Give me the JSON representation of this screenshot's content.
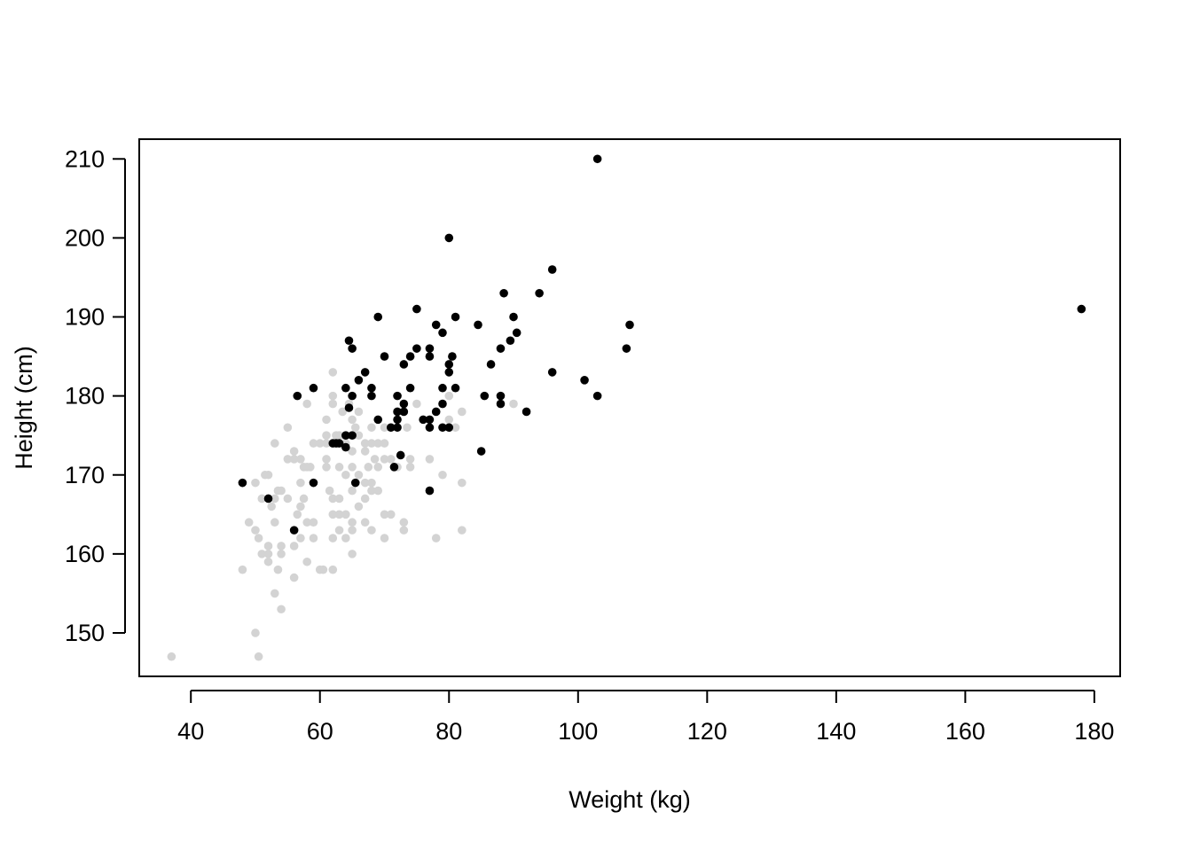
{
  "chart_data": {
    "type": "scatter",
    "title": "",
    "xlabel": "Weight (kg)",
    "ylabel": "Height (cm)",
    "xlim": [
      32,
      184
    ],
    "ylim": [
      144.5,
      212.5
    ],
    "xticks": [
      40,
      60,
      80,
      100,
      120,
      140,
      160,
      180
    ],
    "yticks": [
      150,
      160,
      170,
      180,
      190,
      200,
      210
    ],
    "grid": false,
    "legend": "none",
    "series": [
      {
        "color": "#d3d3d3",
        "points": [
          [
            37,
            147
          ],
          [
            48,
            158
          ],
          [
            49,
            164
          ],
          [
            50,
            169
          ],
          [
            50,
            163
          ],
          [
            50.5,
            162
          ],
          [
            50,
            150
          ],
          [
            50.5,
            147
          ],
          [
            51,
            167
          ],
          [
            51,
            160
          ],
          [
            51.5,
            170
          ],
          [
            52,
            170
          ],
          [
            52,
            161
          ],
          [
            52,
            160
          ],
          [
            52,
            159
          ],
          [
            52.5,
            166
          ],
          [
            53,
            164
          ],
          [
            53,
            155
          ],
          [
            53,
            167
          ],
          [
            53,
            174
          ],
          [
            53.5,
            168
          ],
          [
            53.5,
            158
          ],
          [
            54,
            161
          ],
          [
            54,
            160
          ],
          [
            54,
            153
          ],
          [
            54,
            168
          ],
          [
            55,
            167
          ],
          [
            55,
            172
          ],
          [
            55,
            176
          ],
          [
            56,
            173
          ],
          [
            56,
            172
          ],
          [
            56,
            161
          ],
          [
            56,
            157
          ],
          [
            56.5,
            165
          ],
          [
            57,
            162
          ],
          [
            57,
            166
          ],
          [
            57,
            169
          ],
          [
            57,
            172
          ],
          [
            57.5,
            171
          ],
          [
            57.5,
            167
          ],
          [
            58,
            179
          ],
          [
            58,
            171
          ],
          [
            58,
            159
          ],
          [
            58,
            164
          ],
          [
            58.5,
            171
          ],
          [
            59,
            174
          ],
          [
            59,
            162
          ],
          [
            59,
            164
          ],
          [
            60,
            174
          ],
          [
            60,
            158
          ],
          [
            60.5,
            158
          ],
          [
            61,
            177
          ],
          [
            61,
            174
          ],
          [
            61,
            171
          ],
          [
            61,
            172
          ],
          [
            61,
            175
          ],
          [
            61.5,
            168
          ],
          [
            62,
            183
          ],
          [
            62,
            179
          ],
          [
            62,
            180
          ],
          [
            62,
            174
          ],
          [
            62,
            167
          ],
          [
            62,
            165
          ],
          [
            62,
            162
          ],
          [
            62,
            158
          ],
          [
            62.5,
            175
          ],
          [
            63,
            175
          ],
          [
            63,
            167
          ],
          [
            63,
            165
          ],
          [
            63,
            163
          ],
          [
            63,
            171
          ],
          [
            63.5,
            178
          ],
          [
            64,
            174
          ],
          [
            64,
            170
          ],
          [
            64,
            165
          ],
          [
            64,
            162
          ],
          [
            64.5,
            179
          ],
          [
            65,
            177
          ],
          [
            65,
            173
          ],
          [
            65,
            171
          ],
          [
            65,
            168
          ],
          [
            65,
            164
          ],
          [
            65,
            163
          ],
          [
            65,
            160
          ],
          [
            65.5,
            176
          ],
          [
            66,
            178
          ],
          [
            66,
            175
          ],
          [
            66,
            170
          ],
          [
            66,
            166
          ],
          [
            67,
            174
          ],
          [
            67,
            173
          ],
          [
            67,
            169
          ],
          [
            67,
            164
          ],
          [
            67,
            167
          ],
          [
            67.5,
            171
          ],
          [
            68,
            176
          ],
          [
            68,
            174
          ],
          [
            68,
            169
          ],
          [
            68,
            168
          ],
          [
            68,
            163
          ],
          [
            68.5,
            172
          ],
          [
            69,
            174
          ],
          [
            69,
            171
          ],
          [
            69,
            168
          ],
          [
            70,
            176
          ],
          [
            70,
            174
          ],
          [
            70,
            172
          ],
          [
            70,
            165
          ],
          [
            70,
            162
          ],
          [
            71,
            165
          ],
          [
            71,
            176
          ],
          [
            71,
            172
          ],
          [
            72,
            171
          ],
          [
            73,
            164
          ],
          [
            73,
            163
          ],
          [
            73.5,
            176
          ],
          [
            74,
            172
          ],
          [
            74,
            171
          ],
          [
            75,
            179
          ],
          [
            76,
            177
          ],
          [
            77,
            172
          ],
          [
            77,
            168
          ],
          [
            78,
            162
          ],
          [
            79,
            170
          ],
          [
            80,
            180
          ],
          [
            80,
            177
          ],
          [
            81,
            176
          ],
          [
            82,
            178
          ],
          [
            82,
            169
          ],
          [
            82,
            163
          ],
          [
            90,
            179
          ]
        ]
      },
      {
        "color": "#000000",
        "points": [
          [
            48,
            169
          ],
          [
            52,
            167
          ],
          [
            56,
            163
          ],
          [
            56.5,
            180
          ],
          [
            59,
            181
          ],
          [
            59,
            169
          ],
          [
            62,
            174
          ],
          [
            62.5,
            174
          ],
          [
            63,
            174
          ],
          [
            64,
            181
          ],
          [
            64,
            175
          ],
          [
            64,
            173.5
          ],
          [
            64.5,
            178.5
          ],
          [
            64.5,
            187
          ],
          [
            65,
            186
          ],
          [
            65,
            175
          ],
          [
            65,
            180
          ],
          [
            65.5,
            169
          ],
          [
            66,
            182
          ],
          [
            67,
            183
          ],
          [
            68,
            181
          ],
          [
            68,
            180
          ],
          [
            69,
            190
          ],
          [
            69,
            177
          ],
          [
            70,
            185
          ],
          [
            71,
            176
          ],
          [
            71.5,
            171
          ],
          [
            72,
            180
          ],
          [
            72,
            178
          ],
          [
            72,
            177
          ],
          [
            72,
            176
          ],
          [
            72.5,
            172.5
          ],
          [
            73,
            184
          ],
          [
            73,
            179
          ],
          [
            73,
            178
          ],
          [
            74,
            185
          ],
          [
            74,
            181
          ],
          [
            75,
            186
          ],
          [
            75,
            191
          ],
          [
            76,
            177
          ],
          [
            77,
            186
          ],
          [
            77,
            185
          ],
          [
            77,
            177
          ],
          [
            77,
            176
          ],
          [
            77,
            168
          ],
          [
            78,
            178
          ],
          [
            78,
            189
          ],
          [
            79,
            181
          ],
          [
            79,
            179
          ],
          [
            79,
            176
          ],
          [
            79,
            188
          ],
          [
            80,
            184
          ],
          [
            80,
            183
          ],
          [
            80,
            176
          ],
          [
            80,
            200
          ],
          [
            80.5,
            185
          ],
          [
            81,
            181
          ],
          [
            81,
            190
          ],
          [
            84.5,
            189
          ],
          [
            85,
            173
          ],
          [
            85.5,
            180
          ],
          [
            86.5,
            184
          ],
          [
            88,
            186
          ],
          [
            88,
            180
          ],
          [
            88,
            179
          ],
          [
            88.5,
            193
          ],
          [
            89.5,
            187
          ],
          [
            90,
            190
          ],
          [
            90.5,
            188
          ],
          [
            92,
            178
          ],
          [
            94,
            193
          ],
          [
            96,
            183
          ],
          [
            96,
            196
          ],
          [
            101,
            182
          ],
          [
            103,
            180
          ],
          [
            103,
            210
          ],
          [
            107.5,
            186
          ],
          [
            108,
            189
          ],
          [
            178,
            191
          ]
        ]
      }
    ]
  }
}
